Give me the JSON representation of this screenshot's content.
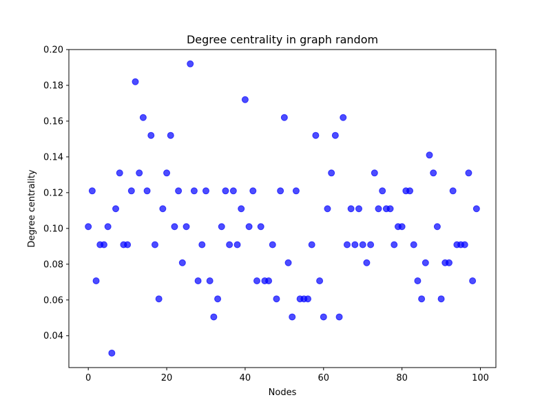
{
  "chart_data": {
    "type": "scatter",
    "title": "Degree centrality in graph random",
    "xlabel": "Nodes",
    "ylabel": "Degree centrality",
    "xlim": [
      -4.95,
      103.95
    ],
    "ylim": [
      0.0222,
      0.2
    ],
    "xticks": [
      0,
      20,
      40,
      60,
      80,
      100
    ],
    "xtick_labels": [
      "0",
      "20",
      "40",
      "60",
      "80",
      "100"
    ],
    "yticks": [
      0.04,
      0.06,
      0.08,
      0.1,
      0.12,
      0.14,
      0.16,
      0.18,
      0.2
    ],
    "ytick_labels": [
      "0.04",
      "0.06",
      "0.08",
      "0.10",
      "0.12",
      "0.14",
      "0.16",
      "0.18",
      "0.20"
    ],
    "grid": false,
    "marker_color": "#0000ff",
    "marker_alpha": 0.7,
    "series": [
      {
        "x": [
          0,
          1,
          2,
          3,
          4,
          5,
          6,
          7,
          8,
          9,
          10,
          11,
          12,
          13,
          14,
          15,
          16,
          17,
          18,
          19,
          20,
          21,
          22,
          23,
          24,
          25,
          26,
          27,
          28,
          29,
          30,
          31,
          32,
          33,
          34,
          35,
          36,
          37,
          38,
          39,
          40,
          41,
          42,
          43,
          44,
          45,
          46,
          47,
          48,
          49,
          50,
          51,
          52,
          53,
          54,
          55,
          56,
          57,
          58,
          59,
          60,
          61,
          62,
          63,
          64,
          65,
          66,
          67,
          68,
          69,
          70,
          71,
          72,
          73,
          74,
          75,
          76,
          77,
          78,
          79,
          80,
          81,
          82,
          83,
          84,
          85,
          86,
          87,
          88,
          89,
          90,
          91,
          92,
          93,
          94,
          95,
          96,
          97,
          98,
          99
        ],
        "values": [
          0.101,
          0.121,
          0.0707,
          0.0909,
          0.0909,
          0.101,
          0.0303,
          0.111,
          0.131,
          0.0909,
          0.0909,
          0.121,
          0.182,
          0.131,
          0.162,
          0.121,
          0.152,
          0.0909,
          0.0606,
          0.111,
          0.131,
          0.152,
          0.101,
          0.121,
          0.0808,
          0.101,
          0.192,
          0.121,
          0.0707,
          0.0909,
          0.121,
          0.0707,
          0.0505,
          0.0606,
          0.101,
          0.121,
          0.0909,
          0.121,
          0.0909,
          0.111,
          0.172,
          0.101,
          0.121,
          0.0707,
          0.101,
          0.0707,
          0.0707,
          0.0909,
          0.0606,
          0.121,
          0.162,
          0.0808,
          0.0505,
          0.121,
          0.0606,
          0.0606,
          0.0606,
          0.0909,
          0.152,
          0.0707,
          0.0505,
          0.111,
          0.131,
          0.152,
          0.0505,
          0.162,
          0.0909,
          0.111,
          0.0909,
          0.111,
          0.0909,
          0.0808,
          0.0909,
          0.131,
          0.111,
          0.121,
          0.111,
          0.111,
          0.0909,
          0.101,
          0.101,
          0.121,
          0.121,
          0.0909,
          0.0707,
          0.0606,
          0.0808,
          0.141,
          0.131,
          0.101,
          0.0606,
          0.0808,
          0.0808,
          0.121,
          0.0909,
          0.0909,
          0.0909,
          0.131,
          0.0707,
          0.111
        ]
      }
    ]
  }
}
